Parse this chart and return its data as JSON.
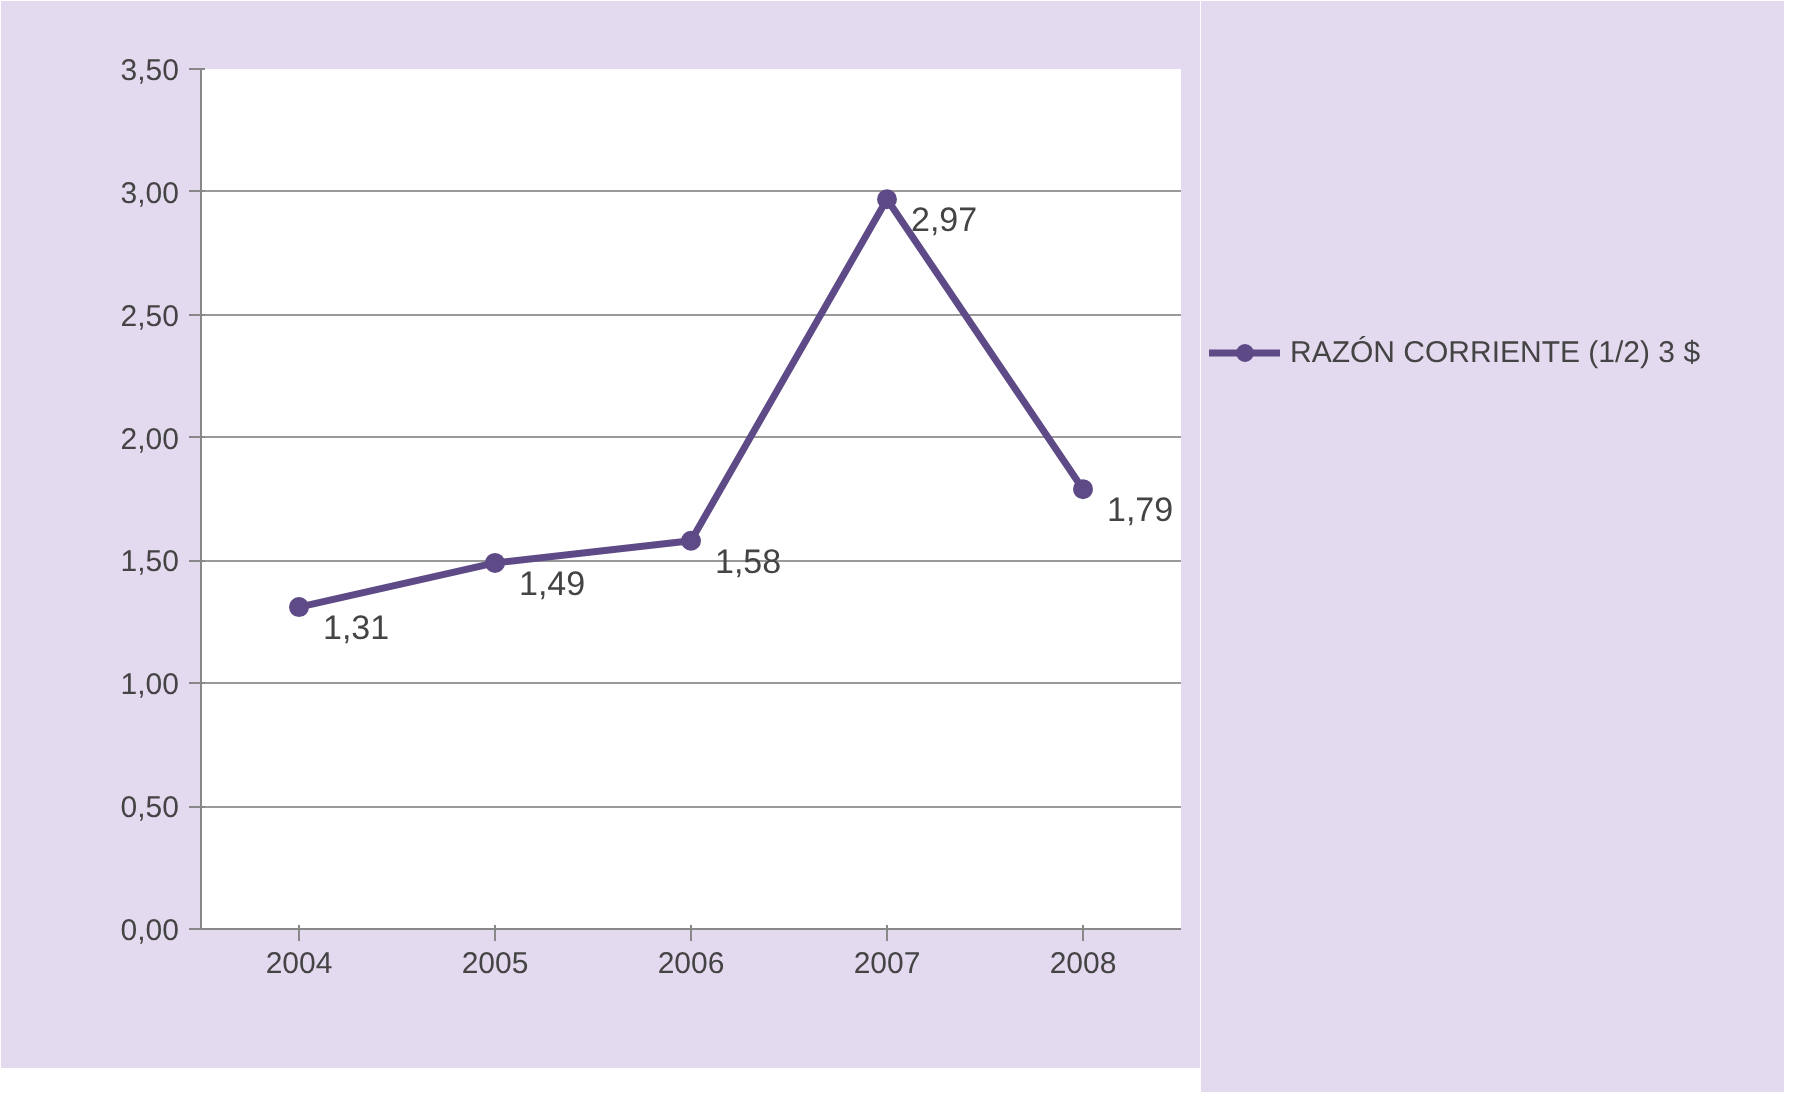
{
  "chart_data": {
    "type": "line",
    "categories": [
      "2004",
      "2005",
      "2006",
      "2007",
      "2008"
    ],
    "series": [
      {
        "name": "RAZÓN CORRIENTE (1/2) 3 $",
        "color": "#5e4a86",
        "values": [
          1.31,
          1.49,
          1.58,
          2.97,
          1.79
        ],
        "value_labels": [
          "1,31",
          "1,49",
          "1,58",
          "2,97",
          "1,79"
        ]
      }
    ],
    "ylim": [
      0,
      3.5
    ],
    "yticks": [
      {
        "value": 0,
        "label": "0,00"
      },
      {
        "value": 0.5,
        "label": "0,50"
      },
      {
        "value": 1,
        "label": "1,00"
      },
      {
        "value": 1.5,
        "label": "1,50"
      },
      {
        "value": 2,
        "label": "2,00"
      },
      {
        "value": 2.5,
        "label": "2,50"
      },
      {
        "value": 3,
        "label": "3,00"
      },
      {
        "value": 3.5,
        "label": "3,50"
      }
    ],
    "grid": "y",
    "legend": "right",
    "marker": "circle",
    "line_style": "solid"
  }
}
